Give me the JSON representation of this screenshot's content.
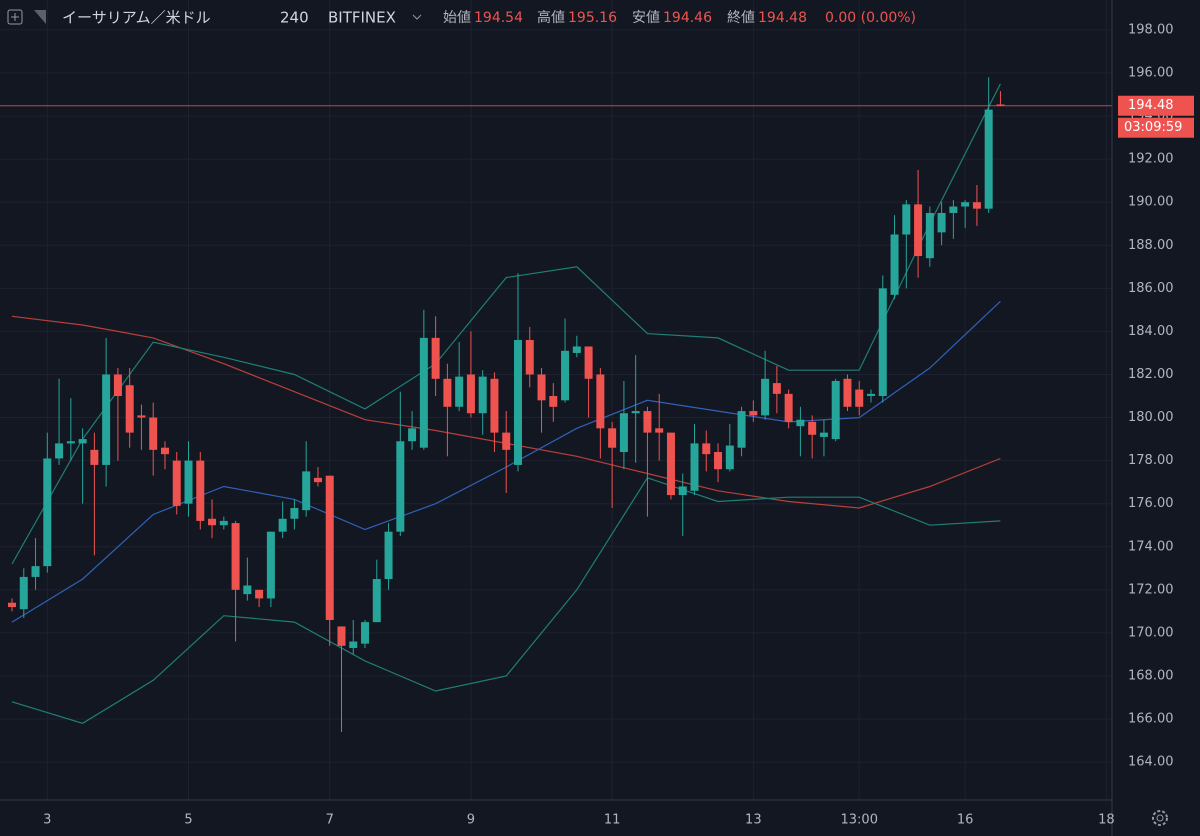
{
  "chart_data": {
    "type": "candlestick",
    "symbol": "イーサリアム／米ドル",
    "interval": "240",
    "exchange": "BITFINEX",
    "open_label": "始値",
    "high_label": "高値",
    "low_label": "安値",
    "close_label": "終値",
    "change": "0.00 (0.00%)",
    "countdown": "03:09:59",
    "up_color": "#26a69a",
    "down_color": "#ef5350",
    "x": [
      2.5,
      2.6667,
      2.8333,
      3,
      3.1667,
      3.3333,
      3.5,
      3.6667,
      3.8333,
      4,
      4.1667,
      4.3333,
      4.5,
      4.6667,
      4.8333,
      5,
      5.1667,
      5.3333,
      5.5,
      5.6667,
      5.8333,
      6,
      6.1667,
      6.3333,
      6.5,
      6.6667,
      6.8333,
      7,
      7.1667,
      7.3333,
      7.5,
      7.6667,
      7.8333,
      8,
      8.1667,
      8.3333,
      8.5,
      8.6667,
      8.8333,
      9,
      9.1667,
      9.3333,
      9.5,
      9.6667,
      9.8333,
      10,
      10.1667,
      10.3333,
      10.5,
      10.6667,
      10.8333,
      11,
      11.1667,
      11.3333,
      11.5,
      11.6667,
      11.8333,
      12,
      12.1667,
      12.3333,
      12.5,
      12.6667,
      12.8333,
      13,
      13.1667,
      13.3333,
      13.5,
      13.6667,
      13.8333,
      14,
      14.1667,
      14.3333,
      14.5,
      14.6667,
      14.8333,
      15,
      15.1667,
      15.3333,
      15.5,
      15.6667,
      15.8333,
      16,
      16.1667,
      16.3333,
      16.5
    ],
    "open": [
      171.4,
      171.1,
      172.6,
      173.1,
      178.1,
      178.8,
      178.8,
      178.5,
      177.8,
      182.0,
      181.5,
      180.1,
      180.0,
      178.6,
      178.0,
      176.0,
      178.0,
      175.3,
      175.0,
      175.1,
      171.8,
      172.0,
      171.6,
      174.7,
      175.3,
      175.7,
      177.2,
      177.3,
      170.3,
      169.3,
      169.5,
      170.5,
      172.5,
      174.7,
      178.9,
      178.6,
      183.7,
      181.8,
      180.5,
      182.0,
      180.2,
      181.8,
      179.3,
      177.8,
      183.6,
      182.0,
      181.0,
      180.8,
      183.0,
      183.3,
      182.0,
      179.5,
      178.4,
      180.2,
      180.3,
      179.5,
      179.3,
      176.4,
      176.6,
      178.8,
      178.4,
      177.6,
      178.6,
      180.3,
      180.1,
      181.6,
      181.1,
      179.6,
      179.8,
      179.1,
      179.0,
      181.8,
      181.3,
      181.0,
      181.0,
      185.7,
      188.5,
      189.9,
      187.4,
      188.6,
      189.5,
      189.8,
      190.0,
      189.7,
      194.54
    ],
    "high": [
      171.6,
      173.0,
      174.4,
      179.3,
      181.8,
      180.9,
      179.5,
      179.3,
      183.7,
      182.3,
      182.3,
      180.6,
      180.7,
      178.9,
      178.4,
      178.9,
      178.4,
      176.2,
      175.4,
      175.2,
      173.5,
      172.0,
      174.7,
      176.1,
      176.2,
      178.9,
      177.7,
      177.3,
      170.3,
      170.6,
      170.6,
      173.4,
      175.1,
      181.2,
      180.3,
      185.0,
      184.7,
      182.5,
      183.5,
      184.0,
      182.2,
      182.1,
      180.3,
      186.7,
      184.2,
      182.3,
      181.6,
      184.6,
      183.8,
      183.3,
      182.3,
      179.8,
      181.7,
      182.9,
      180.5,
      181.1,
      179.3,
      177.4,
      179.7,
      179.4,
      178.8,
      179.7,
      180.5,
      180.8,
      183.1,
      182.4,
      181.3,
      180.5,
      180.1,
      179.9,
      181.8,
      182.0,
      181.7,
      181.3,
      186.6,
      189.4,
      190.1,
      191.5,
      189.8,
      190.0,
      190.1,
      190.1,
      190.8,
      195.8,
      195.16
    ],
    "low": [
      171.0,
      170.7,
      172.0,
      172.8,
      177.8,
      178.0,
      176.0,
      173.6,
      176.8,
      178.0,
      178.6,
      178.5,
      177.3,
      177.6,
      175.5,
      175.4,
      174.8,
      174.4,
      174.8,
      169.6,
      171.5,
      171.2,
      171.2,
      174.4,
      174.8,
      175.4,
      176.8,
      169.4,
      165.4,
      169.0,
      169.3,
      170.5,
      172.0,
      174.5,
      178.5,
      178.5,
      181.0,
      178.2,
      180.3,
      180.0,
      179.2,
      178.4,
      176.5,
      177.5,
      181.4,
      179.3,
      179.8,
      180.7,
      182.8,
      180.0,
      178.1,
      175.8,
      177.6,
      177.9,
      175.4,
      178.0,
      176.2,
      174.5,
      176.4,
      177.5,
      177.0,
      177.5,
      178.2,
      179.8,
      179.9,
      180.2,
      179.5,
      178.2,
      178.1,
      178.2,
      178.9,
      180.3,
      180.1,
      180.7,
      180.7,
      185.5,
      186.0,
      186.5,
      187.0,
      188.0,
      188.3,
      188.8,
      188.9,
      189.5,
      194.46
    ],
    "close": [
      171.2,
      172.6,
      173.1,
      178.1,
      178.8,
      178.9,
      179.0,
      177.8,
      182.0,
      181.0,
      179.3,
      180.0,
      178.5,
      178.3,
      175.9,
      178.0,
      175.2,
      175.0,
      175.2,
      172.0,
      172.2,
      171.6,
      174.7,
      175.3,
      175.8,
      177.5,
      177.0,
      170.6,
      169.4,
      169.6,
      170.5,
      172.5,
      174.7,
      178.9,
      179.5,
      183.7,
      181.8,
      180.5,
      181.9,
      180.2,
      181.9,
      179.3,
      178.5,
      183.6,
      182.0,
      180.8,
      180.5,
      183.1,
      183.3,
      181.8,
      179.5,
      178.6,
      180.2,
      180.3,
      179.3,
      179.3,
      176.4,
      176.8,
      178.8,
      178.3,
      177.6,
      178.7,
      180.3,
      180.1,
      181.8,
      181.1,
      179.8,
      179.9,
      179.2,
      179.3,
      181.7,
      180.5,
      180.5,
      181.1,
      186.0,
      188.5,
      189.9,
      187.5,
      189.5,
      189.5,
      189.8,
      190.0,
      189.7,
      194.3,
      194.48
    ],
    "overlay_x": [
      2.5,
      3.5,
      4.5,
      5.5,
      6.5,
      7.5,
      8.5,
      9.5,
      10.5,
      11.5,
      12.5,
      13.5,
      14.5,
      15.5,
      16.5
    ],
    "overlays": [
      {
        "color": "#b7403a",
        "values": [
          184.7,
          184.3,
          183.7,
          182.5,
          181.2,
          179.9,
          179.4,
          178.8,
          178.2,
          177.4,
          176.6,
          176.1,
          175.8,
          176.8,
          178.1
        ]
      },
      {
        "color": "#2f62b8",
        "values": [
          170.5,
          172.5,
          175.5,
          176.8,
          176.2,
          174.8,
          176.0,
          177.7,
          179.5,
          180.8,
          180.3,
          179.8,
          180.0,
          182.3,
          185.4
        ]
      },
      {
        "color": "#1f7f75",
        "values": [
          173.2,
          179.0,
          183.5,
          182.8,
          182.0,
          180.4,
          182.5,
          186.5,
          187.0,
          183.9,
          183.7,
          182.2,
          182.2,
          189.0,
          195.5
        ]
      },
      {
        "color": "#1f7f75",
        "values": [
          166.8,
          165.8,
          167.8,
          170.8,
          170.5,
          168.7,
          167.3,
          168.0,
          172.0,
          177.2,
          176.1,
          176.3,
          176.3,
          175.0,
          175.2
        ]
      }
    ],
    "xlim": [
      2.33,
      18.08
    ],
    "xticks": [
      3,
      5,
      7,
      9,
      11,
      13,
      {
        "value": 14.5,
        "label": "13:00"
      },
      16,
      18
    ],
    "ylim": [
      162.24,
      199.39
    ],
    "yticks": [
      {
        "value": 198,
        "label": "198.00"
      },
      {
        "value": 196,
        "label": "196.00"
      },
      {
        "value": 194,
        "label": "194.00"
      },
      {
        "value": 192,
        "label": "192.00"
      },
      {
        "value": 190,
        "label": "190.00"
      },
      {
        "value": 188,
        "label": "188.00"
      },
      {
        "value": 186,
        "label": "186.00"
      },
      {
        "value": 184,
        "label": "184.00"
      },
      {
        "value": 182,
        "label": "182.00"
      },
      {
        "value": 180,
        "label": "180.00"
      },
      {
        "value": 178,
        "label": "178.00"
      },
      {
        "value": 176,
        "label": "176.00"
      },
      {
        "value": 174,
        "label": "174.00"
      },
      {
        "value": 172,
        "label": "172.00"
      },
      {
        "value": 170,
        "label": "170.00"
      },
      {
        "value": 168,
        "label": "168.00"
      },
      {
        "value": 166,
        "label": "166.00"
      },
      {
        "value": 164,
        "label": "164.00"
      }
    ],
    "grid": true
  }
}
